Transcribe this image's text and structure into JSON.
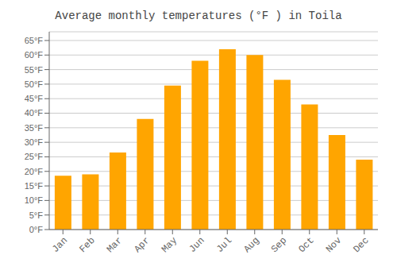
{
  "chart_data": {
    "type": "bar",
    "title": "Average monthly temperatures (°F ) in Toila",
    "categories": [
      "Jan",
      "Feb",
      "Mar",
      "Apr",
      "May",
      "Jun",
      "Jul",
      "Aug",
      "Sep",
      "Oct",
      "Nov",
      "Dec"
    ],
    "values": [
      18.5,
      19.0,
      26.5,
      38.0,
      49.5,
      58.0,
      62.0,
      60.0,
      51.5,
      43.0,
      32.5,
      24.0
    ],
    "color": "#FFA500",
    "ylim": [
      0,
      68
    ],
    "yticks": [
      {
        "value": 0,
        "label": "0°F"
      },
      {
        "value": 5,
        "label": "5°F"
      },
      {
        "value": 10,
        "label": "10°F"
      },
      {
        "value": 15,
        "label": "15°F"
      },
      {
        "value": 20,
        "label": "20°F"
      },
      {
        "value": 25,
        "label": "25°F"
      },
      {
        "value": 30,
        "label": "30°F"
      },
      {
        "value": 35,
        "label": "35°F"
      },
      {
        "value": 40,
        "label": "40°F"
      },
      {
        "value": 45,
        "label": "45°F"
      },
      {
        "value": 50,
        "label": "50°F"
      },
      {
        "value": 55,
        "label": "55°F"
      },
      {
        "value": 60,
        "label": "60°F"
      },
      {
        "value": 65,
        "label": "65°F"
      }
    ],
    "grid": true
  }
}
